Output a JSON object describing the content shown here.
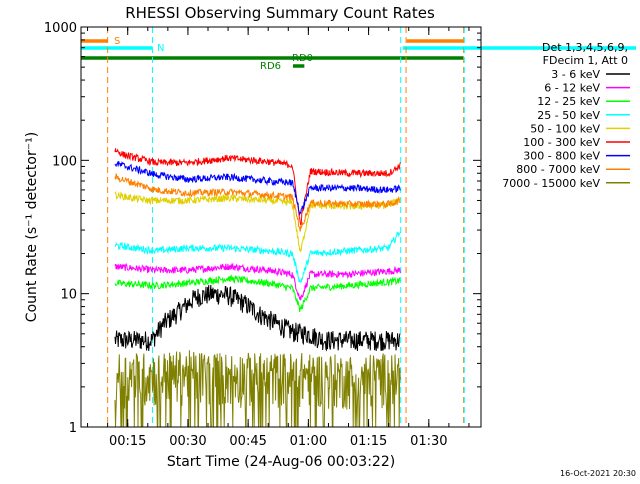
{
  "chart_data": {
    "type": "line",
    "title": "RHESSI Observing Summary Count Rates",
    "xlabel": "Start Time (24-Aug-06 00:03:22)",
    "ylabel": "Count Rate (s⁻¹ detector⁻¹)",
    "y_scale": "log",
    "ylim": [
      1,
      1000
    ],
    "xlim": [
      "00:03:22",
      "01:43:00"
    ],
    "x_ticks": [
      "00:15",
      "00:30",
      "00:45",
      "01:00",
      "01:15",
      "01:30"
    ],
    "y_ticks": [
      "1",
      "10",
      "100",
      "1000"
    ],
    "timestamp": "16-Oct-2021 20:30",
    "legend": {
      "placement": "right",
      "header": [
        "Det 1,3,4,5,6,9,",
        "FDecim 1, Att 0"
      ],
      "entries": [
        {
          "label": "3 - 6 keV",
          "color": "#000000"
        },
        {
          "label": "6 - 12 keV",
          "color": "#ff00ff"
        },
        {
          "label": "12 - 25 keV",
          "color": "#00ff00"
        },
        {
          "label": "25 - 50 keV",
          "color": "#00ffff"
        },
        {
          "label": "50 - 100 keV",
          "color": "#e0d000"
        },
        {
          "label": "100 - 300 keV",
          "color": "#ff0000"
        },
        {
          "label": "300 - 800 keV",
          "color": "#0000ff"
        },
        {
          "label": "800 - 7000 keV",
          "color": "#ff8000"
        },
        {
          "label": "7000 - 15000 keV",
          "color": "#808000"
        }
      ]
    },
    "flag_bars": [
      {
        "label": "S",
        "color": "#ff8000",
        "segments": [
          [
            "00:03:22",
            "00:10:00"
          ],
          [
            "01:24:30",
            "01:38:40"
          ]
        ]
      },
      {
        "label": "N",
        "color": "#00ffff",
        "segments": [
          [
            "00:03:22",
            "00:21:10"
          ],
          [
            "01:23:30",
            "01:43:00"
          ]
        ]
      },
      {
        "label": "RD0",
        "color": "#008000",
        "segments": [
          [
            "00:03:22",
            "01:38:40"
          ]
        ]
      },
      {
        "label": "RD6",
        "color": "#008000",
        "segments": [
          [
            "00:56:10",
            "00:59:00"
          ]
        ]
      }
    ],
    "vertical_markers": [
      {
        "time": "00:10:00",
        "color": "#ff8000"
      },
      {
        "time": "00:21:10",
        "color": "#00ffff"
      },
      {
        "time": "01:23:00",
        "color": "#00ffff"
      },
      {
        "time": "01:24:20",
        "color": "#ff8000"
      },
      {
        "time": "01:38:40",
        "color": "#ff8000"
      },
      {
        "time": "01:38:50",
        "color": "#00ffff"
      }
    ],
    "series": [
      {
        "name": "3 - 6 keV",
        "color": "#000000",
        "x": [
          "00:11:50",
          "00:21:00",
          "00:24:00",
          "00:28:00",
          "00:32:00",
          "00:36:00",
          "00:40:00",
          "00:44:00",
          "00:48:00",
          "00:52:00",
          "00:56:00",
          "01:00:00",
          "01:04:00",
          "01:10:00",
          "01:16:00",
          "01:23:00"
        ],
        "values": [
          4.5,
          4.5,
          6.0,
          7.5,
          9.5,
          10.0,
          9.8,
          8.5,
          7.0,
          6.0,
          5.2,
          5.0,
          4.5,
          4.5,
          4.5,
          4.5
        ]
      },
      {
        "name": "6 - 12 keV",
        "color": "#ff00ff",
        "x": [
          "00:11:50",
          "00:22:00",
          "00:30:00",
          "00:40:00",
          "00:50:00",
          "00:56:00",
          "00:58:00",
          "01:00:30",
          "01:10:00",
          "01:23:00"
        ],
        "values": [
          16,
          15,
          15,
          16,
          15,
          14,
          9,
          14,
          14,
          15
        ]
      },
      {
        "name": "12 - 25 keV",
        "color": "#00ff00",
        "x": [
          "00:11:50",
          "00:22:00",
          "00:30:00",
          "00:40:00",
          "00:50:00",
          "00:56:00",
          "00:58:00",
          "01:00:30",
          "01:10:00",
          "01:23:00"
        ],
        "values": [
          12,
          11.5,
          12,
          13,
          12,
          11,
          7.5,
          11,
          11.5,
          12.5
        ]
      },
      {
        "name": "25 - 50 keV",
        "color": "#00ffff",
        "x": [
          "00:11:50",
          "00:22:00",
          "00:30:00",
          "00:40:00",
          "00:50:00",
          "00:56:00",
          "00:58:00",
          "01:00:30",
          "01:10:00",
          "01:20:00",
          "01:23:00"
        ],
        "values": [
          23,
          21,
          22,
          22,
          21,
          20,
          12,
          20,
          21,
          22,
          30
        ]
      },
      {
        "name": "50 - 100 keV",
        "color": "#e0d000",
        "x": [
          "00:11:50",
          "00:20:00",
          "00:30:00",
          "00:40:00",
          "00:50:00",
          "00:56:00",
          "00:58:00",
          "01:00:30",
          "01:10:00",
          "01:20:00",
          "01:23:00"
        ],
        "values": [
          55,
          50,
          50,
          52,
          50,
          48,
          20,
          46,
          45,
          46,
          52
        ]
      },
      {
        "name": "100 - 300 keV",
        "color": "#ff0000",
        "x": [
          "00:11:50",
          "00:14:00",
          "00:22:00",
          "00:30:00",
          "00:40:00",
          "00:50:00",
          "00:56:00",
          "00:58:00",
          "01:00:30",
          "01:10:00",
          "01:20:00",
          "01:23:00"
        ],
        "values": [
          120,
          110,
          96,
          96,
          104,
          98,
          92,
          33,
          83,
          80,
          80,
          92
        ]
      },
      {
        "name": "300 - 800 keV",
        "color": "#0000ff",
        "x": [
          "00:11:50",
          "00:22:00",
          "00:30:00",
          "00:40:00",
          "00:50:00",
          "00:56:00",
          "00:58:00",
          "01:00:30",
          "01:10:00",
          "01:20:00",
          "01:23:00"
        ],
        "values": [
          95,
          78,
          72,
          75,
          70,
          68,
          40,
          62,
          62,
          60,
          62
        ]
      },
      {
        "name": "800 - 7000 keV",
        "color": "#ff8000",
        "x": [
          "00:11:50",
          "00:22:00",
          "00:30:00",
          "00:40:00",
          "00:50:00",
          "00:56:00",
          "00:58:00",
          "01:00:30",
          "01:10:00",
          "01:20:00",
          "01:23:00"
        ],
        "values": [
          75,
          60,
          57,
          58,
          55,
          53,
          30,
          48,
          47,
          47,
          50
        ]
      },
      {
        "name": "7000 - 15000 keV",
        "color": "#808000",
        "x": [
          "00:11:50",
          "00:20:00",
          "00:30:00",
          "00:40:00",
          "00:50:00",
          "01:00:00",
          "01:10:00",
          "01:20:00",
          "01:23:00"
        ],
        "values": [
          2.5,
          2.5,
          2.6,
          2.5,
          2.5,
          2.5,
          2.4,
          2.5,
          2.5
        ]
      }
    ]
  }
}
